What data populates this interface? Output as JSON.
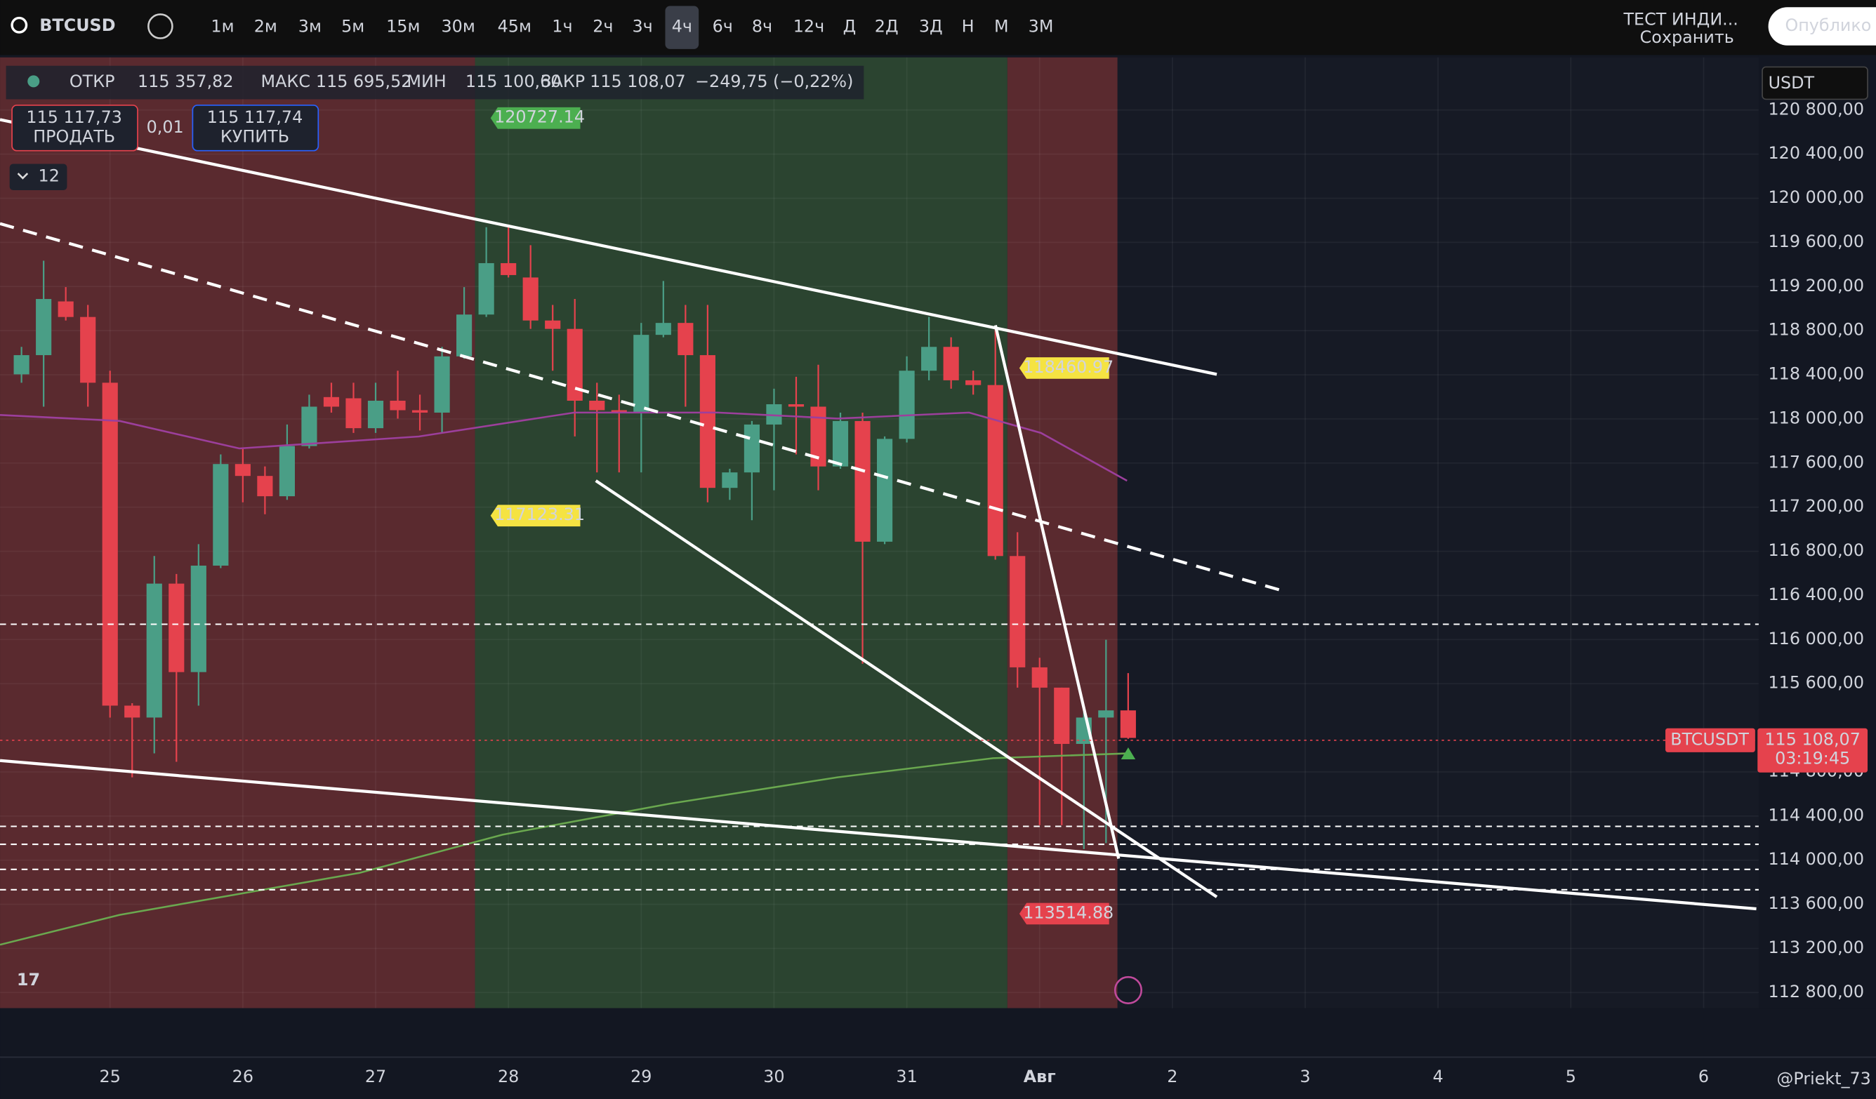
{
  "toolbar": {
    "symbol": "BTCUSD",
    "intervals": [
      "1м",
      "2м",
      "3м",
      "5м",
      "15м",
      "30м",
      "45м",
      "1ч",
      "2ч",
      "3ч",
      "4ч",
      "6ч",
      "8ч",
      "12ч",
      "Д",
      "2Д",
      "3Д",
      "Н",
      "М",
      "3М"
    ],
    "active_interval": "4ч",
    "indicator": "ТЕСТ ИНДИ...",
    "save": "Сохранить",
    "publish": "Опублико"
  },
  "legend": {
    "open_label": "ОТКР",
    "open": "115 357,82",
    "high_label": "МАКС",
    "high": "115 695,52",
    "low_label": "МИН",
    "low": "115 100,60",
    "close_label": "ЗАКР",
    "close": "115 108,07",
    "change": "−249,75 (−0,22%)"
  },
  "trade": {
    "sell_price": "115 117,73",
    "sell": "ПРОДАТЬ",
    "quantity": "0,01",
    "buy_price": "115 117,74",
    "buy": "КУПИТЬ"
  },
  "layers": "12",
  "currency": "USDT",
  "last_price": {
    "symbol": "BTCUSDT",
    "price": "115 108,07",
    "countdown": "03:19:45"
  },
  "watermark": "@Priekt_73",
  "chart_data": {
    "type": "candlestick",
    "up_color": "#4a9e86",
    "down_color": "#e5424d",
    "x": [
      -4,
      -3,
      -2,
      -1,
      0,
      1,
      2,
      3,
      4,
      5,
      6,
      7,
      8,
      9,
      10,
      11,
      12,
      13,
      14,
      15,
      16,
      17,
      18,
      19,
      20,
      21,
      22,
      23,
      24,
      25,
      26,
      27,
      28,
      29,
      30,
      31,
      32,
      33,
      34,
      35,
      36,
      37,
      38,
      39,
      40,
      41,
      42,
      43,
      44,
      45,
      46
    ],
    "open": [
      118404,
      118578,
      119065,
      118924,
      118328,
      115401,
      115293,
      116507,
      115705,
      116670,
      117591,
      117483,
      117299,
      117754,
      118198,
      118187,
      117916,
      118165,
      118079,
      118057,
      118567,
      118946,
      119412,
      119282,
      118892,
      118816,
      118165,
      118079,
      118057,
      118762,
      118870,
      118578,
      117375,
      117515,
      117949,
      118133,
      118111,
      117569,
      117981,
      116887,
      117819,
      118437,
      118653,
      118350,
      118307,
      116757,
      115748,
      115564,
      115054,
      115293,
      115357.82
    ],
    "high": [
      118653,
      119434,
      119195,
      119033,
      118437,
      115423,
      116757,
      116594,
      116865,
      117678,
      117732,
      117569,
      117949,
      118220,
      118328,
      118328,
      118328,
      118437,
      118220,
      118653,
      119195,
      119738,
      119738,
      119575,
      119033,
      119087,
      118328,
      118220,
      118870,
      119250,
      119033,
      119033,
      117548,
      117981,
      118274,
      118382,
      118491,
      118057,
      118057,
      117841,
      118567,
      118924,
      118740,
      118437,
      118848,
      116973,
      115835,
      115564,
      115347,
      115998,
      115695.52
    ],
    "low": [
      118328,
      118111,
      118892,
      118111,
      115293,
      114751,
      114968,
      114892,
      115401,
      116648,
      117244,
      117136,
      117266,
      117732,
      118057,
      117873,
      117873,
      118003,
      117895,
      117873,
      118545,
      118924,
      119282,
      118816,
      118437,
      117841,
      117515,
      117515,
      117515,
      118740,
      118111,
      117244,
      117266,
      117082,
      117353,
      117678,
      117353,
      117548,
      115781,
      116865,
      117786,
      118350,
      118274,
      118220,
      116724,
      115564,
      114318,
      114318,
      114101,
      114155,
      115100.6
    ],
    "close": [
      118578,
      119087,
      118924,
      118328,
      115401,
      115293,
      116507,
      115705,
      116670,
      117591,
      117483,
      117299,
      117754,
      118111,
      118111,
      117916,
      118165,
      118079,
      118057,
      118567,
      118946,
      119412,
      119304,
      118892,
      118816,
      118165,
      118079,
      118057,
      118762,
      118870,
      118578,
      117375,
      117515,
      117949,
      118133,
      118111,
      117569,
      117981,
      116887,
      117819,
      118437,
      118653,
      118350,
      118307,
      116757,
      115748,
      115564,
      115054,
      115293,
      115357.82,
      115108.07
    ],
    "xlim": [
      -4.97,
      74.49
    ],
    "ylim": [
      112659,
      121277
    ],
    "xticks": [
      {
        "value": 0,
        "label": "25"
      },
      {
        "value": 6,
        "label": "26"
      },
      {
        "value": 12,
        "label": "27"
      },
      {
        "value": 18,
        "label": "28"
      },
      {
        "value": 24,
        "label": "29"
      },
      {
        "value": 30,
        "label": "30"
      },
      {
        "value": 36,
        "label": "31"
      },
      {
        "value": 42,
        "label": "Авг"
      },
      {
        "value": 48,
        "label": "2"
      },
      {
        "value": 54,
        "label": "3"
      },
      {
        "value": 60,
        "label": "4"
      },
      {
        "value": 66,
        "label": "5"
      },
      {
        "value": 72,
        "label": "6"
      }
    ],
    "yticks": [
      {
        "value": 120800,
        "label": "120 800,00"
      },
      {
        "value": 120400,
        "label": "120 400,00"
      },
      {
        "value": 120000,
        "label": "120 000,00"
      },
      {
        "value": 119600,
        "label": "119 600,00"
      },
      {
        "value": 119200,
        "label": "119 200,00"
      },
      {
        "value": 118800,
        "label": "118 800,00"
      },
      {
        "value": 118400,
        "label": "118 400,00"
      },
      {
        "value": 118000,
        "label": "118 000,00"
      },
      {
        "value": 117600,
        "label": "117 600,00"
      },
      {
        "value": 117200,
        "label": "117 200,00"
      },
      {
        "value": 116800,
        "label": "116 800,00"
      },
      {
        "value": 116400,
        "label": "116 400,00"
      },
      {
        "value": 116000,
        "label": "116 000,00"
      },
      {
        "value": 115600,
        "label": "115 600,00"
      },
      {
        "value": 114800,
        "label": "114 800,00"
      },
      {
        "value": 114400,
        "label": "114 400,00"
      },
      {
        "value": 114000,
        "label": "114 000,00"
      },
      {
        "value": 113600,
        "label": "113 600,00"
      },
      {
        "value": 113200,
        "label": "113 200,00"
      },
      {
        "value": 112800,
        "label": "112 800,00"
      }
    ],
    "price_tags": [
      {
        "value": 120727.14,
        "color": "#4caf50"
      },
      {
        "value": 118460.97,
        "color": "#f5e342"
      },
      {
        "value": 117123.31,
        "color": "#f5e342"
      },
      {
        "value": 113514.88,
        "color": "#e5424d"
      }
    ]
  }
}
